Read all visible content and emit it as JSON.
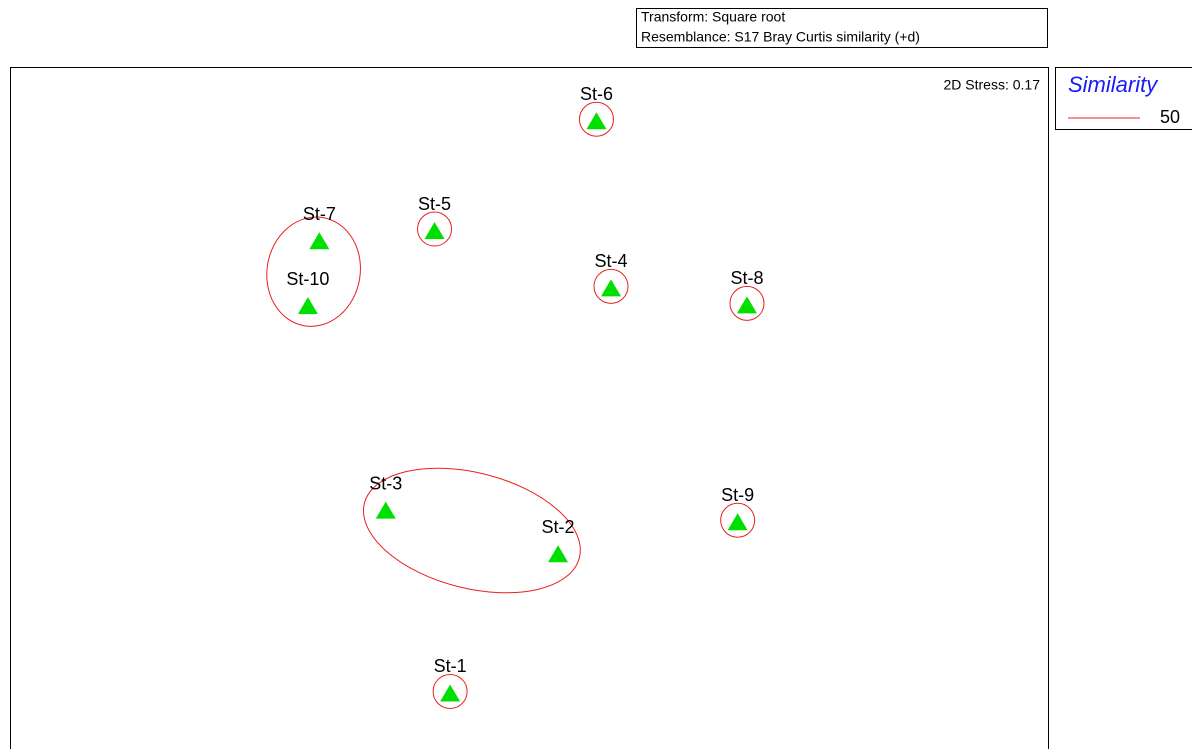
{
  "chart_data": {
    "type": "scatter",
    "transform": "Transform: Square root",
    "resemblance": "Resemblance: S17 Bray Curtis similarity (+d)",
    "stress": "2D Stress: 0.17",
    "legend_title": "Similarity",
    "series": [
      {
        "name": "50",
        "color": "#e8201f"
      }
    ],
    "point_color": "#00e000",
    "labels": [
      "St-6",
      "St-7",
      "St-5",
      "St-4",
      "St-8",
      "St-10",
      "St-3",
      "St-2",
      "St-9",
      "St-1"
    ],
    "x": [
      56.5,
      29.8,
      40.9,
      57.9,
      71.0,
      28.7,
      36.2,
      52.8,
      70.1,
      42.4
    ],
    "y": [
      91.9,
      74.3,
      75.8,
      67.4,
      64.9,
      64.8,
      34.8,
      28.4,
      33.1,
      8.0
    ],
    "xlim": [
      0,
      100
    ],
    "ylim": [
      0,
      100
    ],
    "clusters": [
      [
        "St-6"
      ],
      [
        "St-7",
        "St-10"
      ],
      [
        "St-5"
      ],
      [
        "St-4"
      ],
      [
        "St-8"
      ],
      [
        "St-3",
        "St-2"
      ],
      [
        "St-9"
      ],
      [
        "St-1"
      ]
    ]
  }
}
